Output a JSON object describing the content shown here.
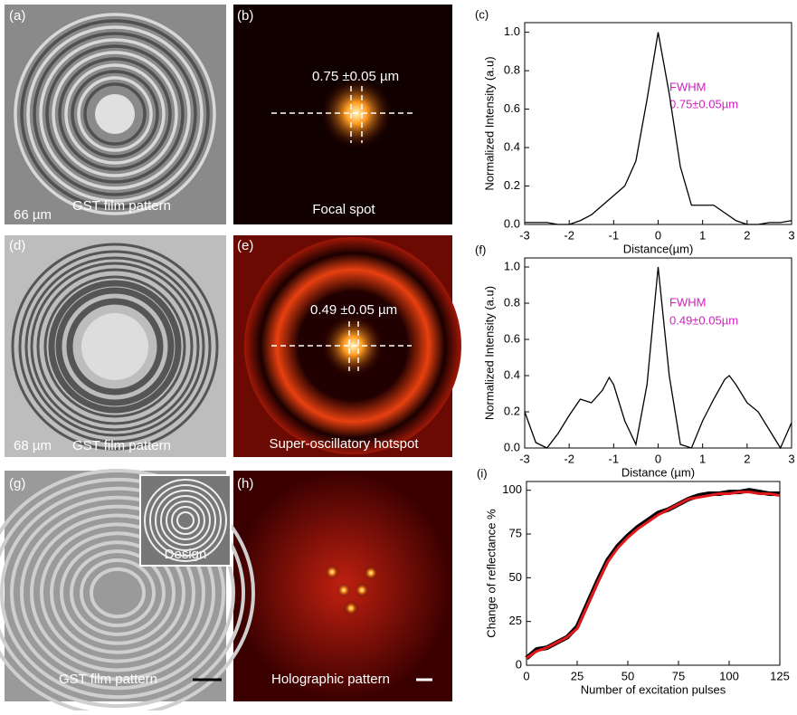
{
  "images": [
    {
      "label": "(a)",
      "scale": "66 µm",
      "caption": "GST film pattern"
    },
    {
      "label": "(b)",
      "measure": "0.75 ±0.05 µm",
      "caption": "Focal spot"
    },
    {
      "label": "(d)",
      "scale": "68 µm",
      "caption": "GST film pattern"
    },
    {
      "label": "(e)",
      "measure": "0.49 ±0.05 µm",
      "caption": "Super-oscillatory hotspot"
    },
    {
      "label": "(g)",
      "inset": "Design",
      "caption": "GST film pattern"
    },
    {
      "label": "(h)",
      "caption": "Holographic pattern"
    }
  ],
  "chart_data": [
    {
      "type": "line",
      "label": "(c)",
      "xlabel": "Distance(µm)",
      "ylabel": "Normalized Intensity (a.u)",
      "annotations": [
        "FWHM",
        "0.75±0.05µm"
      ],
      "xlim": [
        -3,
        3
      ],
      "xticks": [
        -3,
        -2,
        -1,
        0,
        1,
        2,
        3
      ],
      "ylim": [
        0,
        1.05
      ],
      "yticks": [
        {
          "value": 0,
          "label": "0.0"
        },
        0.2,
        0.4,
        0.6,
        0.8,
        {
          "value": 1,
          "label": "1.0"
        }
      ],
      "series": [
        {
          "color": "#000000",
          "x": [
            -3,
            -2.75,
            -2.5,
            -2.25,
            -2,
            -1.75,
            -1.5,
            -1.25,
            -1,
            -0.75,
            -0.5,
            -0.25,
            0,
            0.25,
            0.5,
            0.75,
            1,
            1.25,
            1.5,
            1.75,
            2,
            2.25,
            2.5,
            2.75,
            3
          ],
          "values": [
            0.01,
            0.01,
            0.01,
            0,
            0,
            0.02,
            0.05,
            0.1,
            0.15,
            0.2,
            0.33,
            0.65,
            1,
            0.68,
            0.3,
            0.1,
            0.1,
            0.1,
            0.06,
            0.02,
            0,
            0,
            0.01,
            0.01,
            0.02
          ]
        }
      ]
    },
    {
      "type": "line",
      "label": "(f)",
      "xlabel": "Distance (µm)",
      "ylabel": "Normalized Intensity (a.u)",
      "annotations": [
        "FWHM",
        "0.49±0.05µm"
      ],
      "xlim": [
        -3,
        3
      ],
      "xticks": [
        -3,
        -2,
        -1,
        0,
        1,
        2,
        3
      ],
      "ylim": [
        0,
        1.05
      ],
      "yticks": [
        {
          "value": 0,
          "label": "0.0"
        },
        0.2,
        0.4,
        0.6,
        0.8,
        {
          "value": 1,
          "label": "1.0"
        }
      ],
      "series": [
        {
          "color": "#000000",
          "x": [
            -3,
            -2.75,
            -2.5,
            -2.25,
            -2,
            -1.75,
            -1.5,
            -1.25,
            -1.1,
            -1,
            -0.75,
            -0.5,
            -0.25,
            0,
            0.25,
            0.5,
            0.75,
            1,
            1.25,
            1.5,
            1.6,
            1.75,
            2,
            2.25,
            2.5,
            2.75,
            3
          ],
          "values": [
            0.2,
            0.03,
            0,
            0.08,
            0.18,
            0.27,
            0.25,
            0.32,
            0.39,
            0.35,
            0.15,
            0.02,
            0.35,
            1,
            0.4,
            0.02,
            0,
            0.15,
            0.27,
            0.38,
            0.4,
            0.35,
            0.25,
            0.2,
            0.1,
            0,
            0.14
          ]
        }
      ]
    },
    {
      "type": "line",
      "label": "(i)",
      "xlabel": "Number of excitation pulses",
      "ylabel": "Change of reflectance %",
      "xlim": [
        0,
        125
      ],
      "xticks": [
        0,
        25,
        50,
        75,
        100,
        125
      ],
      "ylim": [
        0,
        105
      ],
      "yticks": [
        0,
        25,
        50,
        75,
        100
      ],
      "series": [
        {
          "color": "#000000",
          "x": [
            0,
            5,
            10,
            15,
            20,
            25,
            30,
            35,
            40,
            45,
            50,
            55,
            60,
            65,
            70,
            75,
            80,
            85,
            90,
            95,
            100,
            105,
            110,
            115,
            120,
            125
          ],
          "values": [
            4,
            9,
            10,
            13,
            16,
            22,
            35,
            48,
            60,
            68,
            74,
            79,
            83,
            87,
            89,
            92,
            95,
            97,
            98,
            98,
            99,
            99,
            100,
            99,
            98,
            98
          ]
        },
        {
          "color": "#e0191c",
          "x": [
            0,
            5,
            10,
            15,
            20,
            25,
            30,
            35,
            40,
            45,
            50,
            55,
            60,
            65,
            70,
            75,
            80,
            85,
            90,
            95,
            100,
            105,
            110,
            115,
            120,
            125
          ],
          "values": [
            4,
            8,
            10,
            13,
            16,
            21,
            34,
            47,
            59,
            67,
            73,
            78,
            82,
            86,
            89,
            92,
            95,
            96,
            97,
            98,
            98,
            99,
            99,
            98,
            98,
            97
          ]
        }
      ]
    }
  ]
}
